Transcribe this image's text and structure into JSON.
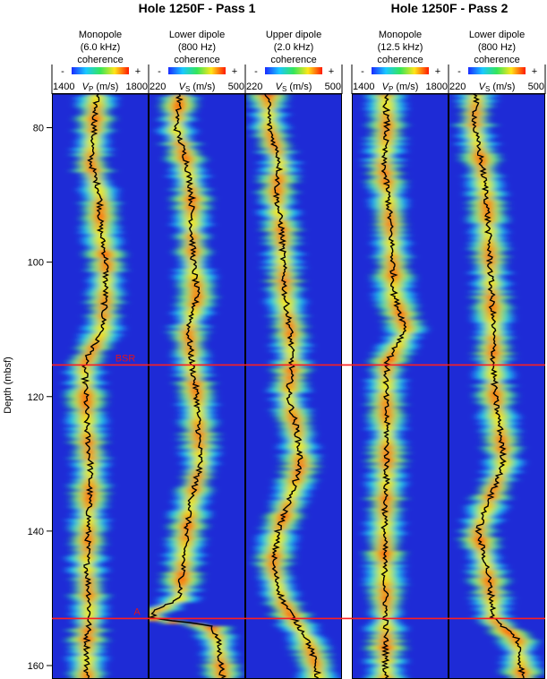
{
  "chart_data": {
    "type": "heatmap",
    "pass_titles": [
      {
        "key": "pass1",
        "text": "Hole 1250F - Pass 1"
      },
      {
        "key": "pass2",
        "text": "Hole 1250F - Pass 2"
      }
    ],
    "ylabel": "Depth (mbsf)",
    "ylim": [
      75,
      162
    ],
    "y_ticks": [
      80,
      100,
      120,
      140,
      160
    ],
    "colorbar": {
      "minus": "-",
      "plus": "+",
      "label": "coherence"
    },
    "tracks": [
      {
        "title_line1": "Monopole",
        "title_line2": "(6.0 kHz)",
        "axis_min": "1400",
        "axis_max": "1800",
        "axis_sym": "V",
        "axis_sub": "P",
        "axis_unit": " (m/s)",
        "vmin": 1400,
        "vmax": 1800,
        "pass": "pass1"
      },
      {
        "title_line1": "Lower dipole",
        "title_line2": "(800 Hz)",
        "axis_min": "220",
        "axis_max": "500",
        "axis_sym": "V",
        "axis_sub": "S",
        "axis_unit": " (m/s)",
        "vmin": 220,
        "vmax": 500,
        "pass": "pass1"
      },
      {
        "title_line1": "Upper dipole",
        "title_line2": "(2.0 kHz)",
        "axis_min": "220",
        "axis_max": "500",
        "axis_sym": "V",
        "axis_sub": "S",
        "axis_unit": " (m/s)",
        "vmin": 220,
        "vmax": 500,
        "pass": "pass1"
      },
      {
        "title_line1": "Monopole",
        "title_line2": "(12.5 kHz)",
        "axis_min": "1400",
        "axis_max": "1800",
        "axis_sym": "V",
        "axis_sub": "P",
        "axis_unit": " (m/s)",
        "vmin": 1400,
        "vmax": 1800,
        "pass": "pass2"
      },
      {
        "title_line1": "Lower dipole",
        "title_line2": "(800 Hz)",
        "axis_min": "220",
        "axis_max": "500",
        "axis_sym": "V",
        "axis_sub": "S",
        "axis_unit": " (m/s)",
        "vmin": 220,
        "vmax": 500,
        "pass": "pass2"
      }
    ],
    "series": [
      {
        "depth": [
          75,
          80,
          85,
          90,
          95,
          100,
          105,
          110,
          115,
          120,
          125,
          130,
          135,
          140,
          145,
          150,
          153,
          156,
          160,
          162
        ],
        "values": [
          1585,
          1575,
          1560,
          1600,
          1600,
          1625,
          1620,
          1610,
          1535,
          1540,
          1545,
          1560,
          1555,
          1550,
          1545,
          1555,
          1555,
          1545,
          1545,
          1545
        ]
      },
      {
        "depth": [
          75,
          80,
          85,
          90,
          95,
          100,
          105,
          110,
          115,
          120,
          125,
          130,
          135,
          140,
          145,
          150,
          152,
          153,
          154,
          156,
          160,
          162
        ],
        "values": [
          310,
          300,
          330,
          345,
          345,
          350,
          360,
          335,
          345,
          360,
          365,
          370,
          345,
          330,
          320,
          310,
          230,
          235,
          400,
          420,
          430,
          435
        ]
      },
      {
        "depth": [
          75,
          80,
          85,
          90,
          95,
          100,
          105,
          110,
          115,
          120,
          125,
          130,
          135,
          140,
          145,
          150,
          153,
          156,
          160,
          162
        ],
        "values": [
          285,
          290,
          320,
          310,
          325,
          330,
          335,
          350,
          355,
          345,
          370,
          380,
          350,
          315,
          300,
          325,
          360,
          400,
          425,
          430
        ]
      },
      {
        "depth": [
          75,
          80,
          85,
          90,
          95,
          100,
          105,
          110,
          115,
          120,
          125,
          130,
          135,
          140,
          145,
          150,
          153,
          156,
          160,
          162
        ],
        "values": [
          1540,
          1545,
          1530,
          1550,
          1560,
          1570,
          1575,
          1625,
          1545,
          1540,
          1545,
          1545,
          1540,
          1535,
          1535,
          1540,
          1540,
          1540,
          1540,
          1540
        ]
      },
      {
        "depth": [
          75,
          80,
          85,
          90,
          95,
          100,
          105,
          110,
          115,
          120,
          125,
          130,
          135,
          140,
          145,
          150,
          153,
          156,
          160,
          162
        ],
        "values": [
          300,
          295,
          315,
          330,
          335,
          340,
          345,
          350,
          350,
          355,
          370,
          380,
          340,
          305,
          330,
          345,
          350,
          420,
          430,
          435
        ]
      }
    ],
    "annotations": [
      {
        "label": "BSR",
        "depth": 115.3
      },
      {
        "label": "A",
        "depth": 153
      }
    ]
  }
}
